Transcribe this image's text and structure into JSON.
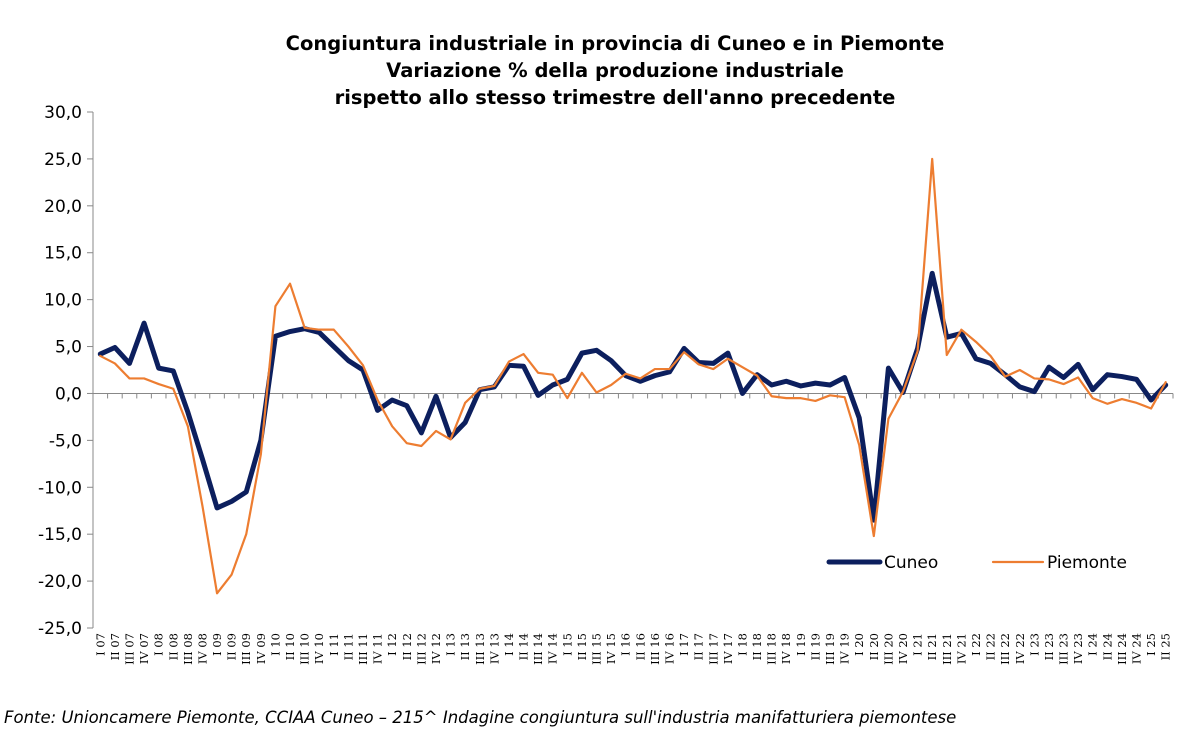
{
  "chart_data": {
    "type": "line",
    "title": "Congiuntura industriale in provincia di Cuneo e in Piemonte",
    "subtitle_lines": [
      "Variazione % della produzione industriale",
      "rispetto allo stesso trimestre dell'anno precedente"
    ],
    "xlabel": "",
    "ylabel": "",
    "ylim": [
      -25,
      30
    ],
    "yticks": [
      "30,0",
      "25,0",
      "20,0",
      "15,0",
      "10,0",
      "5,0",
      "0,0",
      "-5,0",
      "-10,0",
      "-15,0",
      "-20,0",
      "-25,0"
    ],
    "ytick_values": [
      30,
      25,
      20,
      15,
      10,
      5,
      0,
      -5,
      -10,
      -15,
      -20,
      -25
    ],
    "legend_position": "right",
    "grid": false,
    "categories": [
      "I 07",
      "II 07",
      "III 07",
      "IV 07",
      "I 08",
      "II 08",
      "III 08",
      "IV 08",
      "I 09",
      "II 09",
      "III 09",
      "IV 09",
      "I 10",
      "II 10",
      "III 10",
      "IV 10",
      "I 11",
      "II 11",
      "III 11",
      "IV 11",
      "I 12",
      "II 12",
      "III 12",
      "IV 12",
      "I 13",
      "II 13",
      "III 13",
      "IV 13",
      "I 14",
      "II 14",
      "III 14",
      "IV 14",
      "I 15",
      "II 15",
      "III 15",
      "IV 15",
      "I 16",
      "II 16",
      "III 16",
      "IV 16",
      "I 17",
      "II 17",
      "III 17",
      "IV 17",
      "I 18",
      "II 18",
      "III 18",
      "IV 18",
      "I 19",
      "II 19",
      "III 19",
      "IV 19",
      "I 20",
      "II 20",
      "III 20",
      "IV 20",
      "I 21",
      "II 21",
      "III 21",
      "IV 21",
      "I 22",
      "II 22",
      "III 22",
      "IV 22",
      "I 23",
      "II 23",
      "III 23",
      "IV 23",
      "I 24",
      "II 24",
      "III 24",
      "IV 24",
      "I 25",
      "II 25"
    ],
    "series": [
      {
        "name": "Cuneo",
        "color": "#0c1f5e",
        "values": [
          4.2,
          4.9,
          3.2,
          7.5,
          2.7,
          2.4,
          -2.0,
          -7.0,
          -12.2,
          -11.5,
          -10.5,
          -5.0,
          6.1,
          6.6,
          6.9,
          6.5,
          5.0,
          3.5,
          2.5,
          -1.8,
          -0.7,
          -1.3,
          -4.2,
          -0.3,
          -4.7,
          -3.1,
          0.4,
          0.7,
          3.0,
          2.9,
          -0.2,
          0.9,
          1.5,
          4.3,
          4.6,
          3.5,
          1.9,
          1.3,
          1.9,
          2.3,
          4.8,
          3.3,
          3.2,
          4.3,
          0.0,
          2.0,
          0.9,
          1.3,
          0.8,
          1.1,
          0.9,
          1.7,
          -2.6,
          -13.5,
          2.7,
          0.1,
          4.8,
          12.8,
          6.0,
          6.4,
          3.7,
          3.2,
          2.0,
          0.7,
          0.2,
          2.8,
          1.7,
          3.1,
          0.4,
          2.0,
          1.8,
          1.5,
          -0.7,
          0.9
        ]
      },
      {
        "name": "Piemonte",
        "color": "#ed7d31",
        "values": [
          4.0,
          3.2,
          1.6,
          1.6,
          1.0,
          0.5,
          -3.5,
          -12.0,
          -21.3,
          -19.3,
          -15.0,
          -6.5,
          9.3,
          11.7,
          7.0,
          6.8,
          6.8,
          5.0,
          3.0,
          -0.7,
          -3.5,
          -5.3,
          -5.6,
          -4.0,
          -4.9,
          -1.0,
          0.5,
          0.8,
          3.4,
          4.2,
          2.2,
          2.0,
          -0.5,
          2.2,
          0.1,
          0.9,
          2.1,
          1.6,
          2.6,
          2.6,
          4.4,
          3.1,
          2.6,
          3.7,
          2.8,
          1.9,
          -0.3,
          -0.5,
          -0.5,
          -0.8,
          -0.2,
          -0.4,
          -5.5,
          -15.2,
          -2.7,
          0.2,
          4.5,
          25.0,
          4.1,
          6.8,
          5.5,
          4.0,
          1.8,
          2.5,
          1.6,
          1.5,
          1.0,
          1.7,
          -0.5,
          -1.1,
          -0.6,
          -1.0,
          -1.6,
          1.2
        ]
      }
    ]
  },
  "footnote": "Fonte: Unioncamere Piemonte, CCIAA Cuneo – 215^ Indagine congiuntura sull'industria manifatturiera piemontese"
}
